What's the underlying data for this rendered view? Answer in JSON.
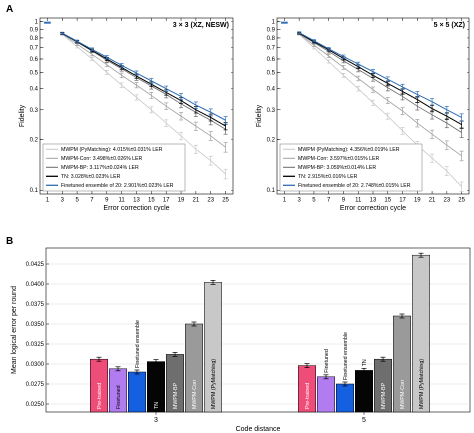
{
  "panel_a": {
    "letter": "A",
    "xlabel": "Error correction cycle",
    "ylabel": "Fidelity",
    "xticks": [
      1,
      3,
      5,
      7,
      9,
      11,
      13,
      15,
      17,
      19,
      21,
      23,
      25
    ],
    "yticks": [
      1,
      0.9,
      0.8,
      0.7,
      0.6,
      0.5,
      0.4,
      0.3,
      0.2,
      0.1
    ],
    "ytick_labels": [
      "1",
      "0.9",
      "0.8",
      "0.7",
      "0.6",
      "0.5",
      "0.4",
      "0.3",
      "0.2",
      "0.1"
    ],
    "series_colors": [
      "#c8c8c8",
      "#a0a0a0",
      "#686868",
      "#000000",
      "#2e6db4"
    ]
  },
  "chart_data": [
    {
      "type": "line",
      "title": "3 × 3 (XZ, NESW)",
      "xlabel": "Error correction cycle",
      "ylabel": "Fidelity",
      "yscale": "log",
      "xlim": [
        0,
        26
      ],
      "ylim": [
        0.095,
        1.05
      ],
      "x": [
        3,
        5,
        7,
        9,
        11,
        13,
        15,
        17,
        19,
        21,
        23,
        25
      ],
      "series": [
        {
          "name": "MWPM (PyMatching): 4.015%±0.031% LER",
          "values": [
            0.84,
            0.71,
            0.6,
            0.5,
            0.42,
            0.355,
            0.3,
            0.25,
            0.21,
            0.175,
            0.15,
            0.125
          ]
        },
        {
          "name": "MWPM-Corr: 3.498%±0.026% LER",
          "values": [
            0.845,
            0.735,
            0.64,
            0.555,
            0.48,
            0.42,
            0.365,
            0.315,
            0.275,
            0.24,
            0.21,
            0.18
          ]
        },
        {
          "name": "MWPM-BP: 3.117%±0.024% LER",
          "values": [
            0.85,
            0.755,
            0.67,
            0.59,
            0.525,
            0.465,
            0.415,
            0.37,
            0.325,
            0.29,
            0.26,
            0.23
          ]
        },
        {
          "name": "TN: 3.028%±0.023% LER",
          "values": [
            0.85,
            0.76,
            0.675,
            0.6,
            0.535,
            0.475,
            0.425,
            0.38,
            0.34,
            0.3,
            0.27,
            0.24
          ]
        },
        {
          "name": "Finetuned ensemble of 20: 2.901%±0.023% LER",
          "values": [
            0.855,
            0.765,
            0.685,
            0.615,
            0.55,
            0.495,
            0.445,
            0.4,
            0.36,
            0.32,
            0.29,
            0.26
          ]
        }
      ],
      "legend": "bottom-left"
    },
    {
      "type": "line",
      "title": "5 × 5 (XZ)",
      "xlabel": "Error correction cycle",
      "ylabel": "Fidelity",
      "yscale": "log",
      "xlim": [
        0,
        26
      ],
      "ylim": [
        0.095,
        1.05
      ],
      "x": [
        3,
        5,
        7,
        9,
        11,
        13,
        15,
        17,
        19,
        21,
        23,
        25
      ],
      "series": [
        {
          "name": "MWPM (PyMatching): 4.356%±0.019% LER",
          "values": [
            0.84,
            0.7,
            0.58,
            0.48,
            0.4,
            0.33,
            0.275,
            0.225,
            0.185,
            0.155,
            0.13,
            0.105
          ]
        },
        {
          "name": "MWPM-Corr: 3.597%±0.015% LER",
          "values": [
            0.845,
            0.725,
            0.625,
            0.535,
            0.46,
            0.395,
            0.34,
            0.295,
            0.25,
            0.215,
            0.185,
            0.16
          ]
        },
        {
          "name": "MWPM-BP: 3.059%±0.014% LER",
          "values": [
            0.85,
            0.75,
            0.665,
            0.585,
            0.52,
            0.46,
            0.405,
            0.36,
            0.315,
            0.28,
            0.25,
            0.22
          ]
        },
        {
          "name": "TN: 2.915%±0.016% LER",
          "values": [
            0.855,
            0.76,
            0.68,
            0.605,
            0.54,
            0.48,
            0.43,
            0.385,
            0.345,
            0.305,
            0.275,
            0.245
          ]
        },
        {
          "name": "Finetuned ensemble of 20: 2.748%±0.015% LER",
          "values": [
            0.86,
            0.77,
            0.69,
            0.62,
            0.56,
            0.505,
            0.455,
            0.41,
            0.37,
            0.335,
            0.3,
            0.27
          ]
        }
      ],
      "legend": "bottom-left"
    },
    {
      "type": "bar",
      "letter": "B",
      "xlabel": "Code distance",
      "ylabel": "Mean logical error per round",
      "ylim": [
        0.024,
        0.0445
      ],
      "yticks": [
        0.025,
        0.0275,
        0.03,
        0.0325,
        0.035,
        0.0375,
        0.04,
        0.0425
      ],
      "ytick_labels": [
        "0.0250",
        "0.0275",
        "0.0300",
        "0.0325",
        "0.0350",
        "0.0375",
        "0.0400",
        "0.0425"
      ],
      "categories": [
        "3",
        "5"
      ],
      "series": [
        {
          "name": "Pre-trained",
          "color": "#ee4d7a",
          "values": [
            0.0306,
            0.0298
          ]
        },
        {
          "name": "Finetuned",
          "color": "#b07cf0",
          "values": [
            0.0294,
            0.0284
          ]
        },
        {
          "name": "Finetuned ensemble",
          "color": "#1560e0",
          "values": [
            0.029,
            0.0275
          ]
        },
        {
          "name": "TN",
          "color": "#050505",
          "values": [
            0.0303,
            0.0292
          ]
        },
        {
          "name": "MWPM-BP",
          "color": "#6e6e6e",
          "values": [
            0.0312,
            0.0306
          ]
        },
        {
          "name": "MWPM-Corr",
          "color": "#9a9a9a",
          "values": [
            0.035,
            0.036
          ]
        },
        {
          "name": "MWPM (PyMatching)",
          "color": "#c8c8c8",
          "values": [
            0.0402,
            0.0436
          ]
        }
      ]
    }
  ]
}
